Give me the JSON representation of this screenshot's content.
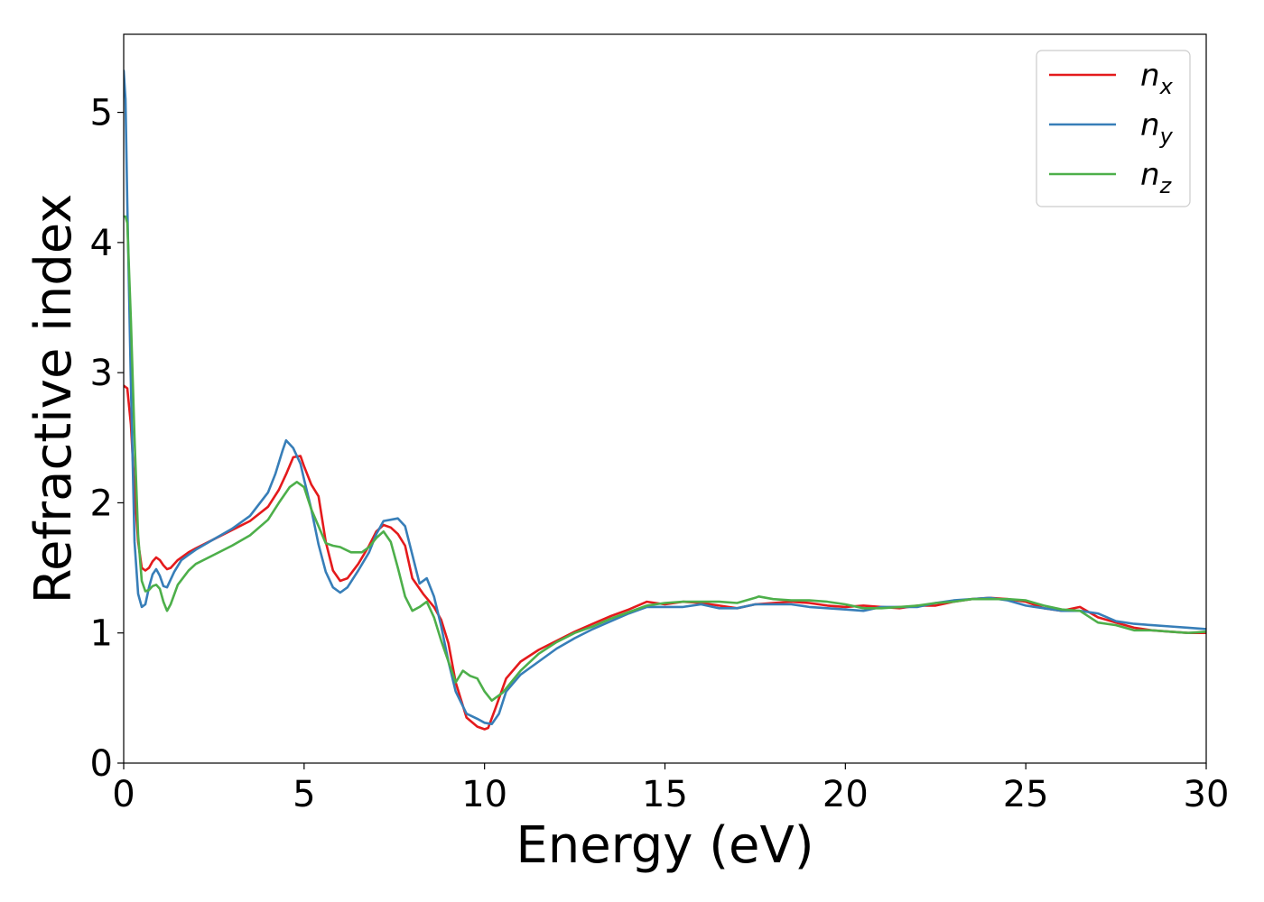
{
  "chart_data": {
    "type": "line",
    "xlabel": "Energy (eV)",
    "ylabel": "Refractive index",
    "xlim": [
      0,
      30
    ],
    "ylim": [
      0,
      5.6
    ],
    "xticks": [
      0,
      5,
      10,
      15,
      20,
      25,
      30
    ],
    "yticks": [
      0,
      1,
      2,
      3,
      4,
      5
    ],
    "grid": false,
    "legend_position": "top-right",
    "series": [
      {
        "name": "n_x",
        "label_base": "n",
        "label_sub": "x",
        "color": "#e41a1c",
        "x": [
          0,
          0.1,
          0.2,
          0.3,
          0.4,
          0.5,
          0.6,
          0.7,
          0.8,
          0.9,
          1.0,
          1.1,
          1.2,
          1.3,
          1.5,
          1.8,
          2.0,
          2.5,
          3.0,
          3.5,
          4.0,
          4.3,
          4.5,
          4.7,
          4.9,
          5.0,
          5.2,
          5.4,
          5.6,
          5.8,
          6.0,
          6.2,
          6.5,
          6.8,
          7.0,
          7.2,
          7.4,
          7.6,
          7.8,
          8.0,
          8.3,
          8.6,
          8.8,
          9.0,
          9.2,
          9.5,
          9.8,
          10.0,
          10.1,
          10.3,
          10.6,
          11.0,
          11.5,
          12.0,
          12.5,
          13.0,
          13.5,
          14.0,
          14.5,
          15.0,
          15.5,
          16.0,
          16.5,
          17.0,
          17.5,
          18.0,
          18.5,
          19.0,
          19.5,
          20.0,
          20.5,
          21.0,
          21.5,
          22.0,
          22.5,
          23.0,
          23.5,
          24.0,
          24.5,
          25.0,
          25.5,
          26.0,
          26.5,
          27.0,
          27.5,
          28.0,
          28.5,
          29.0,
          29.5,
          30.0
        ],
        "y": [
          2.9,
          2.88,
          2.6,
          2.1,
          1.7,
          1.5,
          1.48,
          1.5,
          1.55,
          1.58,
          1.56,
          1.52,
          1.49,
          1.5,
          1.56,
          1.62,
          1.65,
          1.72,
          1.79,
          1.86,
          1.97,
          2.1,
          2.22,
          2.35,
          2.36,
          2.28,
          2.14,
          2.05,
          1.7,
          1.48,
          1.4,
          1.42,
          1.53,
          1.67,
          1.78,
          1.83,
          1.81,
          1.76,
          1.67,
          1.42,
          1.3,
          1.2,
          1.1,
          0.92,
          0.62,
          0.35,
          0.28,
          0.26,
          0.27,
          0.42,
          0.65,
          0.78,
          0.87,
          0.94,
          1.01,
          1.07,
          1.13,
          1.18,
          1.24,
          1.22,
          1.24,
          1.23,
          1.21,
          1.19,
          1.22,
          1.23,
          1.24,
          1.23,
          1.21,
          1.2,
          1.21,
          1.2,
          1.19,
          1.21,
          1.21,
          1.24,
          1.26,
          1.27,
          1.26,
          1.24,
          1.19,
          1.17,
          1.2,
          1.12,
          1.08,
          1.04,
          1.02,
          1.01,
          1.0,
          1.0
        ]
      },
      {
        "name": "n_y",
        "label_base": "n",
        "label_sub": "y",
        "color": "#377eb8",
        "x": [
          0,
          0.05,
          0.1,
          0.2,
          0.3,
          0.4,
          0.5,
          0.6,
          0.7,
          0.8,
          0.9,
          1.0,
          1.1,
          1.2,
          1.4,
          1.6,
          1.8,
          2.0,
          2.5,
          3.0,
          3.5,
          4.0,
          4.2,
          4.4,
          4.5,
          4.7,
          4.9,
          5.0,
          5.2,
          5.4,
          5.6,
          5.8,
          6.0,
          6.2,
          6.5,
          6.8,
          7.0,
          7.2,
          7.4,
          7.6,
          7.8,
          8.0,
          8.2,
          8.4,
          8.6,
          8.8,
          9.0,
          9.2,
          9.5,
          9.8,
          10.0,
          10.2,
          10.4,
          10.6,
          11.0,
          11.5,
          12.0,
          12.5,
          13.0,
          13.5,
          14.0,
          14.5,
          15.0,
          15.5,
          16.0,
          16.5,
          17.0,
          17.5,
          18.0,
          18.5,
          19.0,
          19.5,
          20.0,
          20.5,
          21.0,
          21.5,
          22.0,
          22.5,
          23.0,
          23.5,
          24.0,
          24.5,
          25.0,
          25.5,
          26.0,
          26.5,
          27.0,
          27.5,
          28.0,
          28.5,
          29.0,
          29.5,
          30.0
        ],
        "y": [
          5.32,
          5.1,
          4.3,
          2.9,
          1.7,
          1.3,
          1.2,
          1.22,
          1.35,
          1.45,
          1.49,
          1.44,
          1.36,
          1.35,
          1.47,
          1.56,
          1.6,
          1.64,
          1.72,
          1.8,
          1.9,
          2.08,
          2.22,
          2.4,
          2.48,
          2.42,
          2.3,
          2.18,
          1.95,
          1.68,
          1.47,
          1.35,
          1.31,
          1.35,
          1.48,
          1.62,
          1.76,
          1.86,
          1.87,
          1.88,
          1.82,
          1.6,
          1.38,
          1.42,
          1.28,
          1.05,
          0.78,
          0.55,
          0.38,
          0.34,
          0.31,
          0.3,
          0.38,
          0.55,
          0.68,
          0.78,
          0.88,
          0.96,
          1.03,
          1.09,
          1.15,
          1.2,
          1.2,
          1.2,
          1.22,
          1.19,
          1.19,
          1.22,
          1.22,
          1.22,
          1.2,
          1.19,
          1.18,
          1.17,
          1.2,
          1.2,
          1.2,
          1.23,
          1.25,
          1.26,
          1.27,
          1.25,
          1.21,
          1.19,
          1.17,
          1.17,
          1.15,
          1.09,
          1.07,
          1.06,
          1.05,
          1.04,
          1.03
        ]
      },
      {
        "name": "n_z",
        "label_base": "n",
        "label_sub": "z",
        "color": "#4daf4a",
        "x": [
          0,
          0.05,
          0.1,
          0.2,
          0.3,
          0.4,
          0.5,
          0.6,
          0.7,
          0.8,
          0.9,
          1.0,
          1.1,
          1.2,
          1.3,
          1.5,
          1.8,
          2.0,
          2.5,
          3.0,
          3.5,
          4.0,
          4.3,
          4.6,
          4.8,
          5.0,
          5.2,
          5.4,
          5.6,
          5.8,
          6.0,
          6.3,
          6.6,
          6.8,
          7.0,
          7.2,
          7.4,
          7.6,
          7.8,
          8.0,
          8.2,
          8.4,
          8.6,
          8.8,
          9.0,
          9.2,
          9.4,
          9.6,
          9.8,
          10.0,
          10.2,
          10.5,
          11.0,
          11.5,
          12.0,
          12.5,
          13.0,
          13.5,
          14.0,
          14.5,
          15.0,
          15.5,
          16.0,
          16.5,
          17.0,
          17.5,
          17.6,
          18.0,
          18.5,
          19.0,
          19.5,
          20.0,
          20.5,
          21.0,
          21.5,
          22.0,
          22.5,
          23.0,
          23.5,
          24.0,
          24.5,
          25.0,
          25.5,
          26.0,
          26.5,
          27.0,
          27.5,
          28.0,
          28.5,
          29.0,
          29.5,
          30.0
        ],
        "y": [
          4.2,
          4.2,
          4.15,
          3.4,
          2.5,
          1.75,
          1.4,
          1.32,
          1.33,
          1.36,
          1.37,
          1.34,
          1.24,
          1.17,
          1.22,
          1.37,
          1.48,
          1.53,
          1.6,
          1.67,
          1.75,
          1.87,
          2.0,
          2.12,
          2.16,
          2.12,
          1.95,
          1.82,
          1.69,
          1.67,
          1.66,
          1.62,
          1.62,
          1.66,
          1.73,
          1.78,
          1.7,
          1.5,
          1.28,
          1.17,
          1.2,
          1.24,
          1.12,
          0.94,
          0.78,
          0.62,
          0.71,
          0.67,
          0.65,
          0.55,
          0.48,
          0.54,
          0.71,
          0.84,
          0.93,
          1.0,
          1.05,
          1.11,
          1.16,
          1.21,
          1.23,
          1.24,
          1.24,
          1.24,
          1.23,
          1.27,
          1.28,
          1.26,
          1.25,
          1.25,
          1.24,
          1.22,
          1.19,
          1.19,
          1.2,
          1.21,
          1.23,
          1.24,
          1.26,
          1.26,
          1.26,
          1.25,
          1.21,
          1.18,
          1.17,
          1.08,
          1.06,
          1.02,
          1.02,
          1.01,
          1.0,
          1.01
        ]
      }
    ]
  }
}
